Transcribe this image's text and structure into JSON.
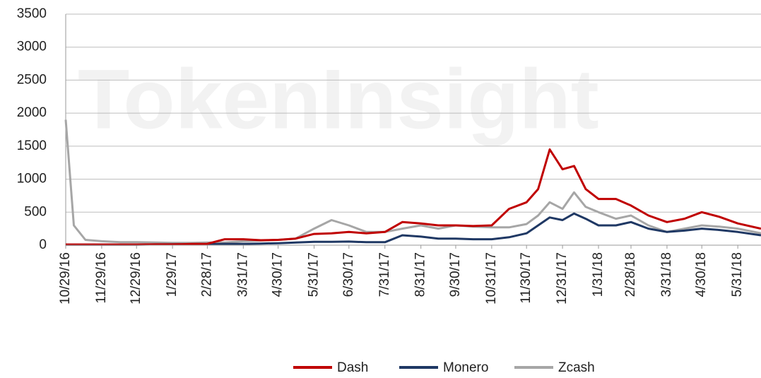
{
  "chart_data": {
    "type": "line",
    "watermark": "TokenInsight",
    "x": [
      "10/29/16",
      "11/5/16",
      "11/15/16",
      "11/29/16",
      "12/15/16",
      "12/29/16",
      "1/15/17",
      "1/29/17",
      "2/15/17",
      "2/28/17",
      "3/15/17",
      "3/31/17",
      "4/15/17",
      "4/30/17",
      "5/15/17",
      "5/31/17",
      "6/15/17",
      "6/30/17",
      "7/15/17",
      "7/31/17",
      "8/15/17",
      "8/31/17",
      "9/15/17",
      "9/30/17",
      "10/15/17",
      "10/31/17",
      "11/15/17",
      "11/30/17",
      "12/10/17",
      "12/20/17",
      "12/31/17",
      "1/10/18",
      "1/20/18",
      "1/31/18",
      "2/15/18",
      "2/28/18",
      "3/15/18",
      "3/31/18",
      "4/15/18",
      "4/30/18",
      "5/15/18",
      "5/31/18",
      "6/20/18"
    ],
    "series": [
      {
        "name": "Dash",
        "color": "#c00000",
        "values": [
          10,
          10,
          10,
          10,
          10,
          10,
          12,
          12,
          18,
          20,
          90,
          90,
          75,
          80,
          100,
          170,
          180,
          200,
          180,
          200,
          350,
          330,
          300,
          300,
          290,
          300,
          550,
          650,
          850,
          1450,
          1150,
          1200,
          850,
          700,
          700,
          600,
          450,
          350,
          400,
          500,
          430,
          330,
          250
        ]
      },
      {
        "name": "Monero",
        "color": "#1f3864",
        "values": [
          8,
          8,
          8,
          8,
          8,
          9,
          12,
          13,
          13,
          15,
          20,
          20,
          25,
          30,
          40,
          50,
          50,
          55,
          45,
          45,
          150,
          130,
          100,
          100,
          90,
          90,
          120,
          180,
          300,
          420,
          380,
          480,
          400,
          300,
          300,
          350,
          250,
          200,
          220,
          250,
          230,
          200,
          150
        ]
      },
      {
        "name": "Zcash",
        "color": "#a6a6a6",
        "values": [
          1900,
          300,
          80,
          60,
          45,
          45,
          40,
          35,
          35,
          40,
          40,
          60,
          70,
          80,
          100,
          250,
          380,
          300,
          200,
          200,
          250,
          300,
          250,
          300,
          280,
          270,
          270,
          320,
          450,
          650,
          550,
          800,
          580,
          500,
          400,
          450,
          300,
          200,
          250,
          300,
          280,
          250,
          180
        ]
      }
    ],
    "xlim": [
      "10/29/16",
      "6/20/18"
    ],
    "xticks": [
      "10/29/16",
      "11/29/16",
      "12/29/16",
      "1/29/17",
      "2/28/17",
      "3/31/17",
      "4/30/17",
      "5/31/17",
      "6/30/17",
      "7/31/17",
      "8/31/17",
      "9/30/17",
      "10/31/17",
      "11/30/17",
      "12/31/17",
      "1/31/18",
      "2/28/18",
      "3/31/18",
      "4/30/18",
      "5/31/18"
    ],
    "ylim": [
      0,
      3500
    ],
    "yticks": [
      0,
      500,
      1000,
      1500,
      2000,
      2500,
      3000,
      3500
    ],
    "grid": true
  }
}
